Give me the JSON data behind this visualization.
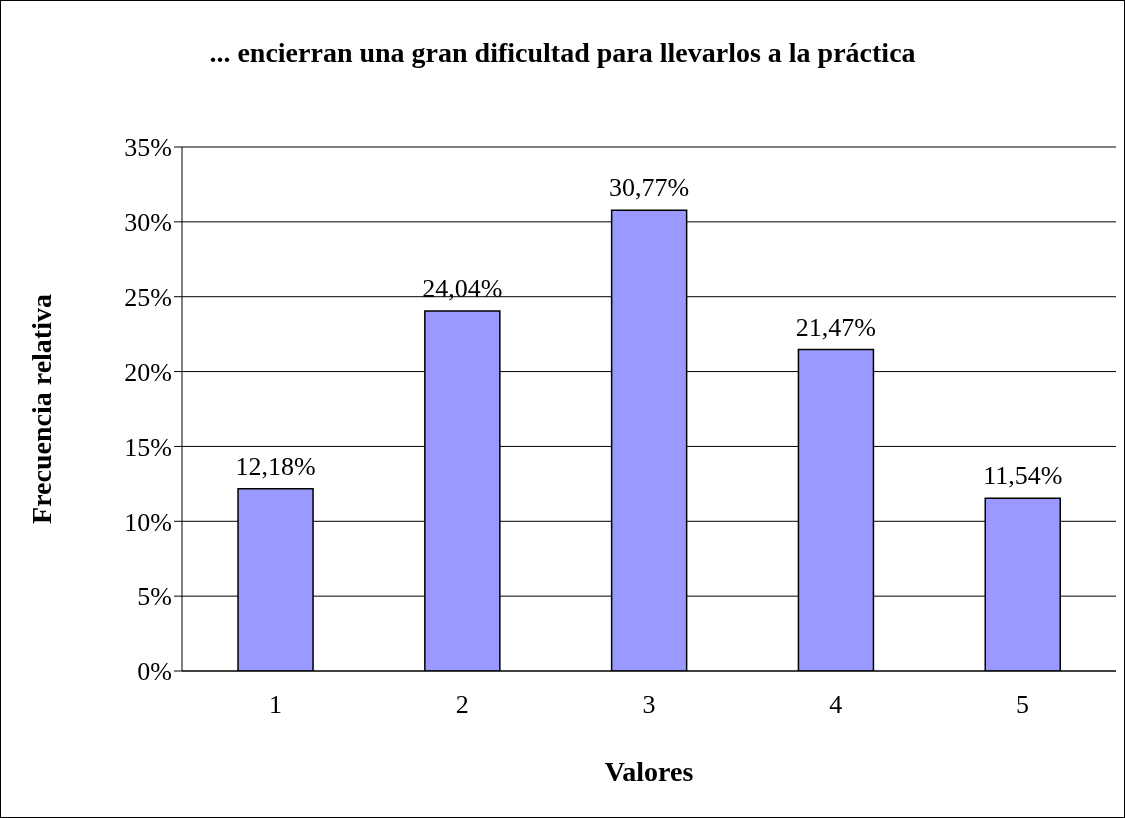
{
  "chart_data": {
    "type": "bar",
    "title": "... encierran una gran dificultad para llevarlos a la práctica",
    "xlabel": "Valores",
    "ylabel": "Frecuencia relativa",
    "categories": [
      "1",
      "2",
      "3",
      "4",
      "5"
    ],
    "values": [
      12.18,
      24.04,
      30.77,
      21.47,
      11.54
    ],
    "value_labels": [
      "12,18%",
      "24,04%",
      "30,77%",
      "21,47%",
      "11,54%"
    ],
    "color": "#9999ff",
    "ylim": [
      0,
      35
    ],
    "yticks": [
      {
        "value": 0,
        "label": "0%"
      },
      {
        "value": 5,
        "label": "5%"
      },
      {
        "value": 10,
        "label": "10%"
      },
      {
        "value": 15,
        "label": "15%"
      },
      {
        "value": 20,
        "label": "20%"
      },
      {
        "value": 25,
        "label": "25%"
      },
      {
        "value": 30,
        "label": "30%"
      },
      {
        "value": 35,
        "label": "35%"
      }
    ],
    "grid": "y"
  }
}
